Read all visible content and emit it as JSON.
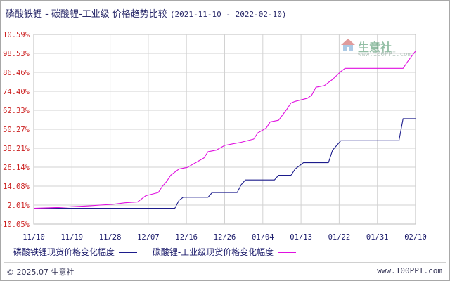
{
  "header": {
    "title": "磷酸铁锂 - 碳酸锂-工业级 价格趋势比较",
    "date_range": "(2021-11-10 - 2022-02-10)"
  },
  "watermark": {
    "name": "生意社",
    "url": "www.100PPI.com",
    "logo_icon": "house-logo-icon"
  },
  "footer": {
    "copyright": "© 2025.07 生意社",
    "site": "www.100PPI.com"
  },
  "colors": {
    "series_1": "#1c1c8c",
    "series_2": "#e010e0",
    "grid": "#d2d2d2",
    "y_tick": "#cc2222",
    "x_tick": "#1a1a6a"
  },
  "chart_data": {
    "type": "line",
    "title": "磷酸铁锂 - 碳酸锂-工业级 价格趋势比较",
    "xlabel": "",
    "ylabel": "",
    "x_tick_labels": [
      "11/10",
      "11/19",
      "11/28",
      "12/07",
      "12/16",
      "12/26",
      "01/04",
      "01/13",
      "01/22",
      "01/31",
      "02/10"
    ],
    "y_tick_labels": [
      "110.59%",
      "98.53%",
      "86.46%",
      "74.40%",
      "62.33%",
      "50.27%",
      "38.21%",
      "26.14%",
      "14.08%",
      "2.01%",
      "-10.05%"
    ],
    "ylim": [
      -10.05,
      110.59
    ],
    "grid": true,
    "legend_position": "bottom",
    "series": [
      {
        "name": "磷酸铁锂现货价格变化幅度",
        "color": "#1c1c8c",
        "points": [
          [
            "2021-11-10",
            0
          ],
          [
            "2021-12-07",
            0
          ],
          [
            "2021-12-14",
            0
          ],
          [
            "2021-12-15",
            5
          ],
          [
            "2021-12-16",
            7
          ],
          [
            "2021-12-22",
            7
          ],
          [
            "2021-12-23",
            10
          ],
          [
            "2021-12-29",
            10
          ],
          [
            "2021-12-30",
            15
          ],
          [
            "2021-12-31",
            18
          ],
          [
            "2022-01-07",
            18
          ],
          [
            "2022-01-08",
            21
          ],
          [
            "2022-01-11",
            21
          ],
          [
            "2022-01-12",
            25
          ],
          [
            "2022-01-13",
            27
          ],
          [
            "2022-01-14",
            29
          ],
          [
            "2022-01-20",
            29
          ],
          [
            "2022-01-21",
            37
          ],
          [
            "2022-01-22",
            40
          ],
          [
            "2022-01-23",
            43
          ],
          [
            "2022-02-06",
            43
          ],
          [
            "2022-02-07",
            57
          ],
          [
            "2022-02-10",
            57
          ]
        ]
      },
      {
        "name": "碳酸锂-工业级现货价格变化幅度",
        "color": "#e010e0",
        "points": [
          [
            "2021-11-10",
            0
          ],
          [
            "2021-11-16",
            0.5
          ],
          [
            "2021-11-19",
            1
          ],
          [
            "2021-11-23",
            1.5
          ],
          [
            "2021-11-26",
            2
          ],
          [
            "2021-11-29",
            2.5
          ],
          [
            "2021-12-02",
            3.5
          ],
          [
            "2021-12-05",
            4
          ],
          [
            "2021-12-06",
            6
          ],
          [
            "2021-12-07",
            8
          ],
          [
            "2021-12-10",
            10
          ],
          [
            "2021-12-11",
            14
          ],
          [
            "2021-12-12",
            17
          ],
          [
            "2021-12-13",
            21
          ],
          [
            "2021-12-15",
            25
          ],
          [
            "2021-12-17",
            26
          ],
          [
            "2021-12-19",
            29
          ],
          [
            "2021-12-21",
            32
          ],
          [
            "2021-12-22",
            36
          ],
          [
            "2021-12-24",
            37
          ],
          [
            "2021-12-26",
            40
          ],
          [
            "2021-12-28",
            41
          ],
          [
            "2021-12-30",
            42
          ],
          [
            "2022-01-02",
            44
          ],
          [
            "2022-01-03",
            48
          ],
          [
            "2022-01-05",
            51
          ],
          [
            "2022-01-06",
            55
          ],
          [
            "2022-01-08",
            56
          ],
          [
            "2022-01-10",
            63
          ],
          [
            "2022-01-11",
            67
          ],
          [
            "2022-01-12",
            68
          ],
          [
            "2022-01-15",
            70
          ],
          [
            "2022-01-16",
            72
          ],
          [
            "2022-01-17",
            77
          ],
          [
            "2022-01-19",
            78
          ],
          [
            "2022-01-21",
            82
          ],
          [
            "2022-01-23",
            87
          ],
          [
            "2022-01-24",
            89
          ],
          [
            "2022-02-07",
            89
          ],
          [
            "2022-02-08",
            93
          ],
          [
            "2022-02-10",
            100
          ]
        ]
      }
    ]
  }
}
